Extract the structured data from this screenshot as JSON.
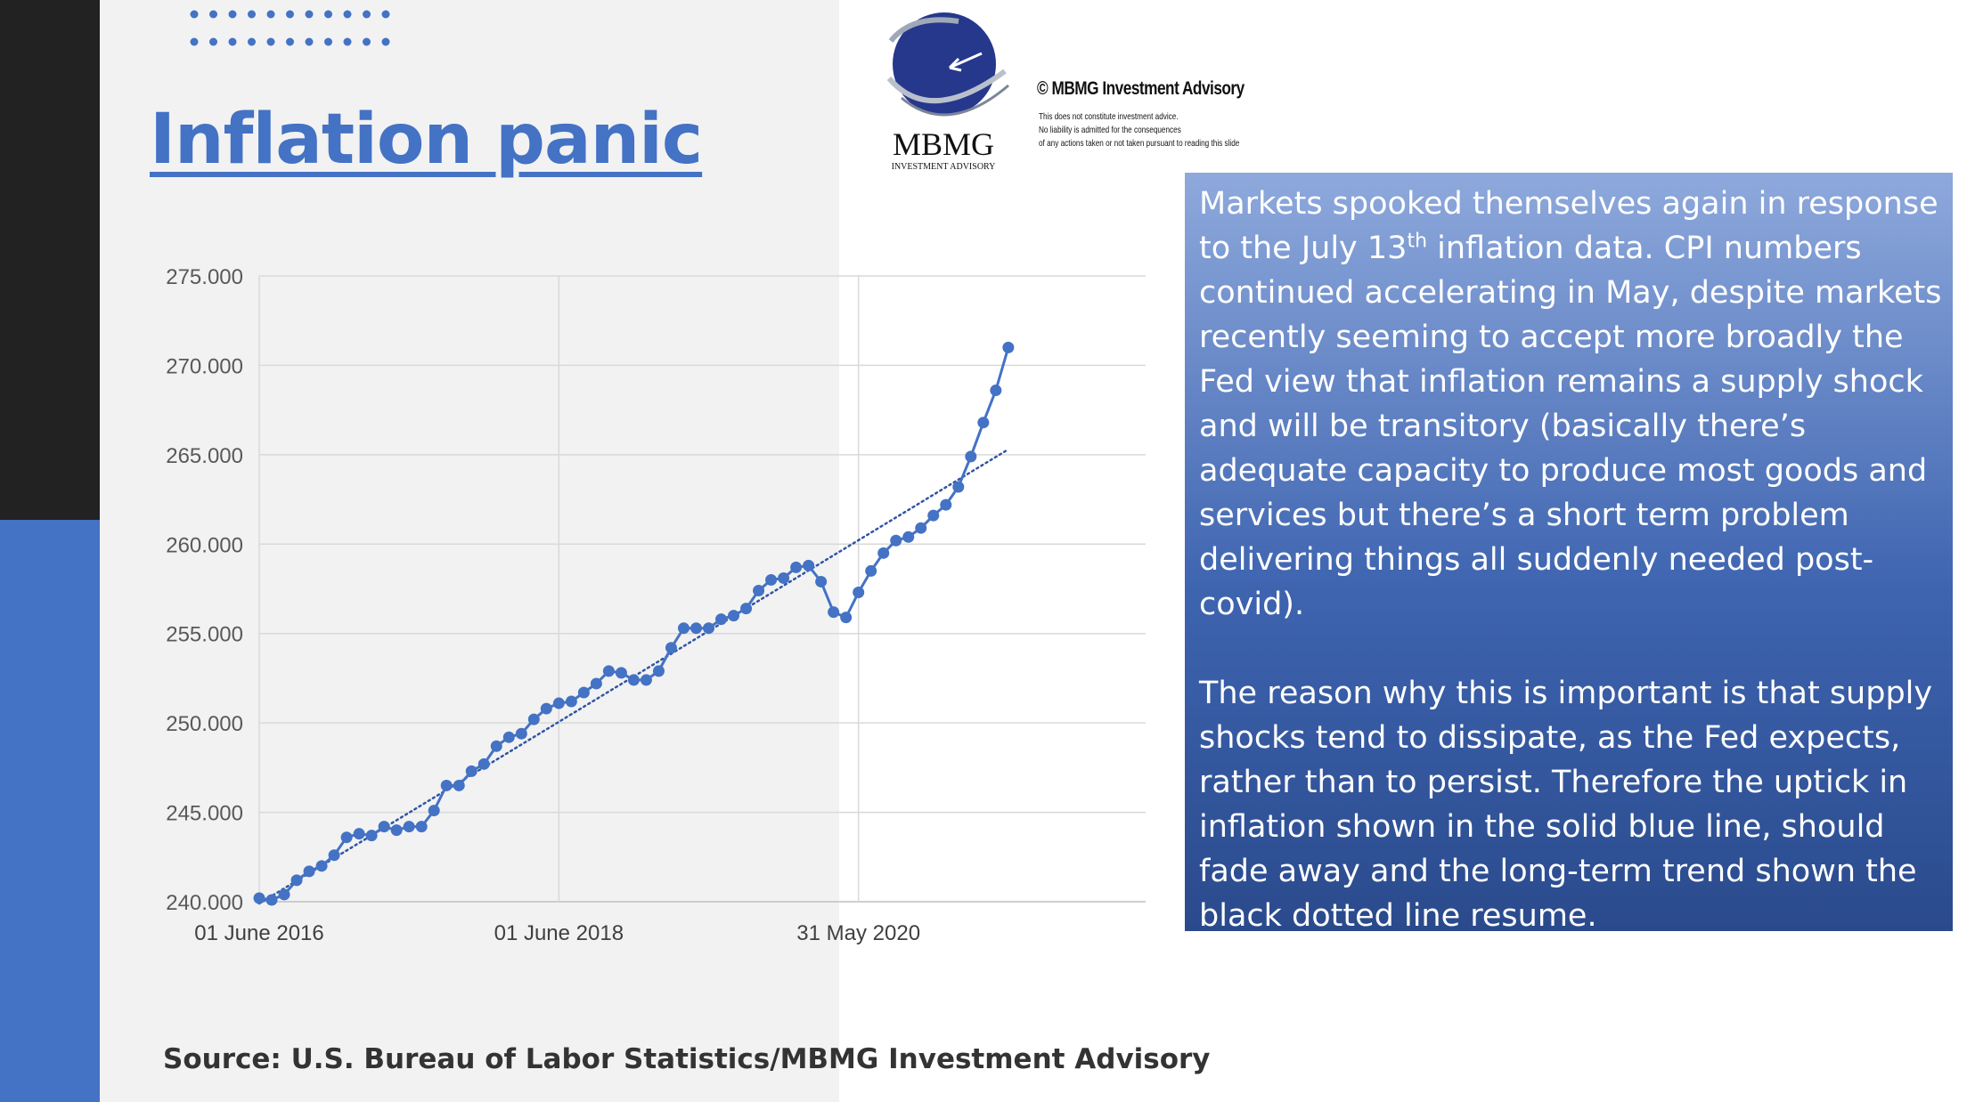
{
  "slide": {
    "title": "Inflation panic",
    "logo": {
      "name": "MBMG",
      "subtitle": "INVESTMENT ADVISORY"
    },
    "copyright": "© MBMG Investment Advisory",
    "disclaimer": [
      "This does not constitute investment advice.",
      "No liability is admitted for the consequences",
      "of any actions taken or not taken pursuant to reading this slide"
    ],
    "commentary": {
      "p1_part1": "Markets spooked themselves again in response to the July 13",
      "p1_sup": "th",
      "p1_part2": " inflation data. CPI numbers continued accelerating in May, despite markets recently seeming to accept more broadly the Fed view that inflation remains a supply shock and will be transitory (basically there’s adequate capacity to produce most goods and services but there’s a short term problem delivering things all suddenly needed post-covid).",
      "p2": "The reason why this is important is that supply shocks tend to dissipate, as the Fed expects, rather than to persist. Therefore the uptick in inflation shown in the solid blue line, should fade away and the long-term trend shown the black dotted line resume."
    },
    "source": "Source: U.S. Bureau of Labor Statistics/MBMG Investment Advisory",
    "colors": {
      "accent": "#4472c4",
      "dark_bar": "#222222",
      "grey_panel": "#f2f2f2"
    }
  },
  "chart_data": {
    "type": "line",
    "title": "",
    "xlabel": "",
    "ylabel": "",
    "ylim": [
      240,
      275
    ],
    "y_ticks": [
      "240.000",
      "245.000",
      "250.000",
      "255.000",
      "260.000",
      "265.000",
      "270.000",
      "275.000"
    ],
    "x_ticks": [
      {
        "label": "01 June 2016",
        "month_index": 0
      },
      {
        "label": "01 June 2018",
        "month_index": 24
      },
      {
        "label": "31 May 2020",
        "month_index": 48
      }
    ],
    "x_range_months": [
      0,
      71
    ],
    "grid": {
      "horizontal": true,
      "vertical_at_ticks": true
    },
    "series": [
      {
        "style": "solid-with-markers",
        "color": "#4472c4",
        "values": [
          240.2,
          240.1,
          240.4,
          241.2,
          241.7,
          242.0,
          242.6,
          243.6,
          243.8,
          243.7,
          244.2,
          244.0,
          244.2,
          244.2,
          245.1,
          246.5,
          246.5,
          247.3,
          247.7,
          248.7,
          249.2,
          249.4,
          250.2,
          250.8,
          251.1,
          251.2,
          251.7,
          252.2,
          252.9,
          252.8,
          252.4,
          252.4,
          252.9,
          254.2,
          255.3,
          255.3,
          255.3,
          255.8,
          256.0,
          256.4,
          257.4,
          258.0,
          258.1,
          258.7,
          258.8,
          257.9,
          256.2,
          255.9,
          257.3,
          258.5,
          259.5,
          260.2,
          260.4,
          260.9,
          261.6,
          262.2,
          263.2,
          264.9,
          266.8,
          268.6,
          271.0
        ]
      },
      {
        "style": "dotted-trendline",
        "color": "#2f55a4",
        "x": [
          0,
          60
        ],
        "values": [
          239.9,
          265.3
        ]
      }
    ]
  }
}
